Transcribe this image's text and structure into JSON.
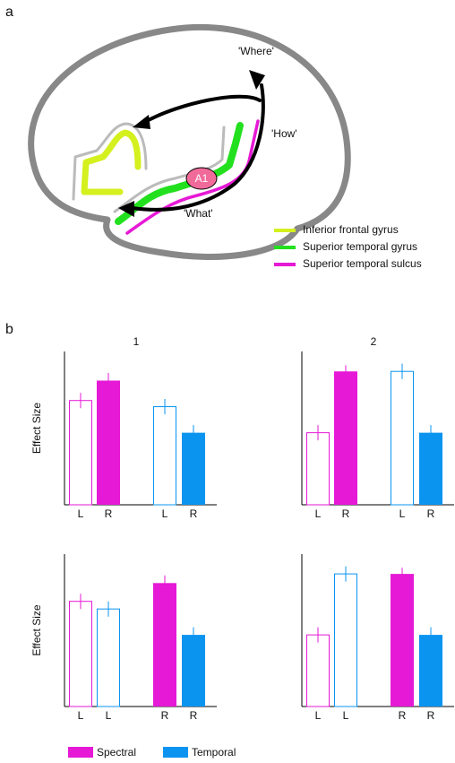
{
  "panel_a": {
    "label": "a",
    "where": "'Where'",
    "how": "'How'",
    "what": "'What'",
    "a1": "A1",
    "legend": [
      {
        "name": "Inferior frontal gyrus",
        "color": "#d4f01e"
      },
      {
        "name": "Superior temporal gyrus",
        "color": "#22e01e"
      },
      {
        "name": "Superior temporal sulcus",
        "color": "#e619d6"
      }
    ]
  },
  "panel_b_label": "b",
  "legend": [
    {
      "name": "Spectral",
      "color": "#e619d6"
    },
    {
      "name": "Temporal",
      "color": "#0a94f0"
    }
  ],
  "chart_data": [
    {
      "type": "bar",
      "title": "1",
      "ylabel": "Effect Size",
      "ylim": [
        0,
        100
      ],
      "categories": [
        "L",
        "R",
        "L",
        "R"
      ],
      "values": [
        68,
        81,
        64,
        47
      ],
      "errors": [
        5,
        5,
        5,
        5
      ],
      "colors": [
        "#e619d6",
        "#e619d6",
        "#0a94f0",
        "#0a94f0"
      ],
      "filled": [
        false,
        true,
        false,
        true
      ]
    },
    {
      "type": "bar",
      "title": "2",
      "ylim": [
        0,
        100
      ],
      "categories": [
        "L",
        "R",
        "L",
        "R"
      ],
      "values": [
        47,
        87,
        87,
        47
      ],
      "errors": [
        5,
        4,
        5,
        5
      ],
      "colors": [
        "#e619d6",
        "#e619d6",
        "#0a94f0",
        "#0a94f0"
      ],
      "filled": [
        false,
        true,
        false,
        true
      ]
    },
    {
      "type": "bar",
      "ylabel": "Effect Size",
      "ylim": [
        0,
        100
      ],
      "categories": [
        "L",
        "L",
        "R",
        "R"
      ],
      "values": [
        69,
        64,
        81,
        47
      ],
      "errors": [
        5,
        5,
        5,
        5
      ],
      "colors": [
        "#e619d6",
        "#0a94f0",
        "#e619d6",
        "#0a94f0"
      ],
      "filled": [
        false,
        false,
        true,
        true
      ]
    },
    {
      "type": "bar",
      "ylim": [
        0,
        100
      ],
      "categories": [
        "L",
        "L",
        "R",
        "R"
      ],
      "values": [
        47,
        87,
        87,
        47
      ],
      "errors": [
        5,
        5,
        4,
        5
      ],
      "colors": [
        "#e619d6",
        "#0a94f0",
        "#e619d6",
        "#0a94f0"
      ],
      "filled": [
        false,
        false,
        true,
        true
      ]
    }
  ]
}
